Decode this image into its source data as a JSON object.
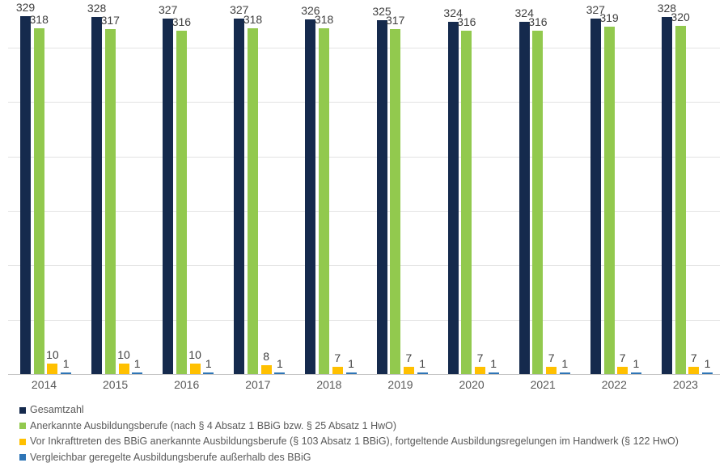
{
  "chart_data": {
    "type": "bar",
    "title": "",
    "xlabel": "",
    "ylabel": "",
    "categories": [
      "2014",
      "2015",
      "2016",
      "2017",
      "2018",
      "2019",
      "2020",
      "2021",
      "2022",
      "2023"
    ],
    "series": [
      {
        "name": "Gesamtzahl",
        "color": "#152a4d",
        "values": [
          329,
          328,
          327,
          327,
          326,
          325,
          324,
          324,
          327,
          328
        ]
      },
      {
        "name": "Anerkannte Ausbildungsberufe (nach § 4 Absatz 1 BBiG bzw. § 25 Absatz 1 HwO)",
        "color": "#92c94e",
        "values": [
          318,
          317,
          316,
          318,
          318,
          317,
          316,
          316,
          319,
          320
        ]
      },
      {
        "name": "Vor Inkrafttreten des BBiG anerkannte Ausbildungsberufe (§ 103 Absatz 1 BBiG), fortgeltende Ausbildungsregelungen im Handwerk (§ 122 HwO)",
        "color": "#ffc000",
        "values": [
          10,
          10,
          10,
          8,
          7,
          7,
          7,
          7,
          7,
          7
        ]
      },
      {
        "name": "Vergleichbar geregelte Ausbildungsberufe außerhalb des BBiG",
        "color": "#2e75b6",
        "values": [
          1,
          1,
          1,
          1,
          1,
          1,
          1,
          1,
          1,
          1
        ]
      }
    ],
    "ylim": [
      0,
      350
    ],
    "y_gridline_interval": 50,
    "y_axis_labels_visible": false,
    "grid": true,
    "data_labels": true,
    "legend_position": "bottom-left",
    "background_color": "#ffffff",
    "gridline_color": "#e3e3e3",
    "axis_line_color": "#c6c6c6",
    "data_label_color": "#404040",
    "category_label_color": "#595959",
    "legend_text_color": "#595959"
  }
}
